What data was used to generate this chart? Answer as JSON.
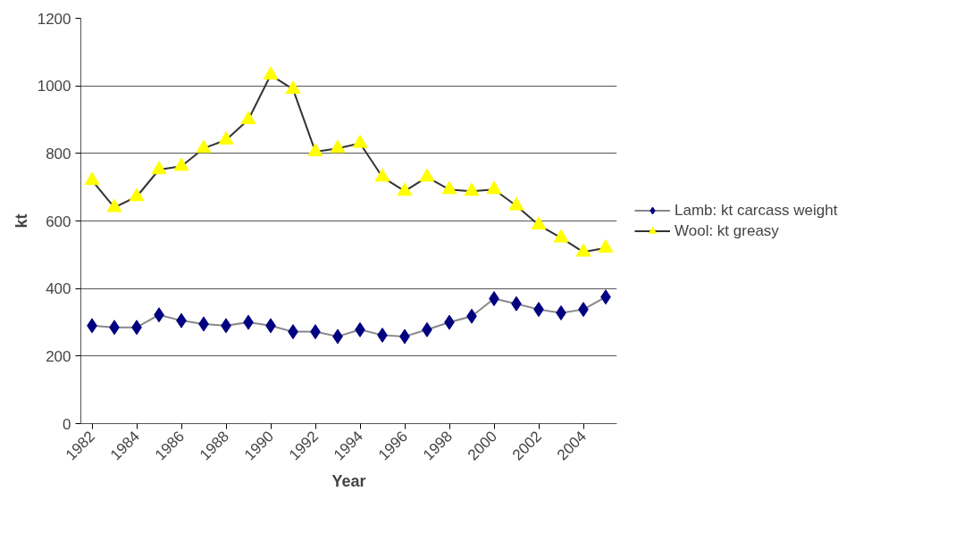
{
  "chart_data": {
    "type": "line",
    "xlabel": "Year",
    "ylabel": "kt",
    "categories": [
      "1982",
      null,
      "1984",
      null,
      "1986",
      null,
      "1988",
      null,
      "1990",
      null,
      "1992",
      null,
      "1994",
      null,
      "1996",
      null,
      "1998",
      null,
      "2000",
      null,
      "2002",
      null,
      "2004",
      null
    ],
    "series": [
      {
        "name": "Lamb: kt carcass weight",
        "color": "#000080",
        "marker": "diamond",
        "values": [
          290,
          285,
          285,
          322,
          305,
          295,
          290,
          300,
          290,
          272,
          272,
          258,
          278,
          262,
          258,
          278,
          300,
          318,
          370,
          355,
          338,
          328,
          338,
          375
        ]
      },
      {
        "name": "Wool: kt greasy",
        "color": "#ffff00",
        "marker": "triangle",
        "values": [
          720,
          640,
          672,
          752,
          762,
          815,
          840,
          900,
          1032,
          990,
          805,
          815,
          830,
          730,
          688,
          730,
          693,
          688,
          693,
          645,
          588,
          550,
          508,
          520
        ]
      }
    ],
    "ylim": [
      0,
      1200
    ],
    "yticks": [
      0,
      200,
      400,
      600,
      800,
      1000,
      1200
    ],
    "grid": "y",
    "legend": "right"
  }
}
